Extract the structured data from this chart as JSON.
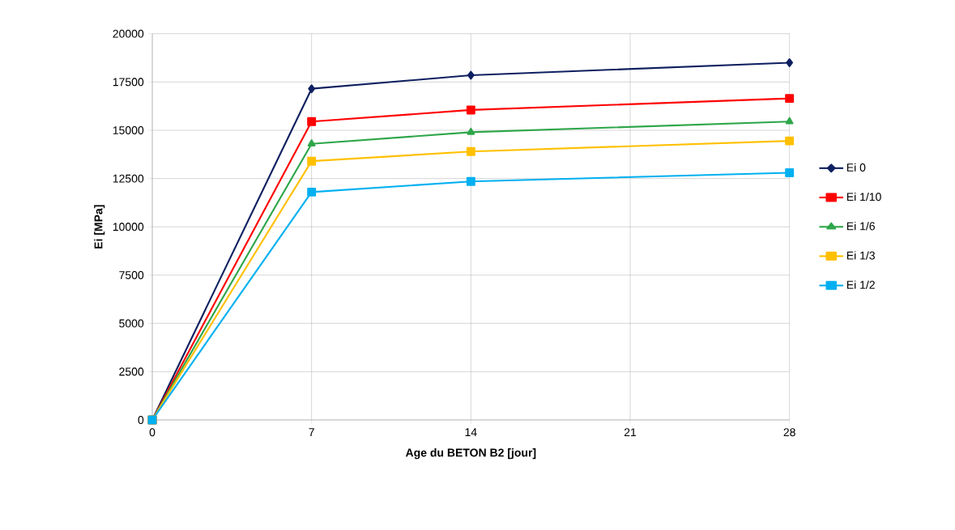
{
  "chart_data": {
    "type": "line",
    "xlabel": "Age du BETON B2 [jour]",
    "ylabel": "Ei [MPa]",
    "x": [
      0,
      7,
      14,
      28
    ],
    "xlim": [
      0,
      28
    ],
    "xticks": [
      0,
      7,
      14,
      21,
      28
    ],
    "ylim": [
      0,
      20000
    ],
    "yticks": [
      0,
      2500,
      5000,
      7500,
      10000,
      12500,
      15000,
      17500,
      20000
    ],
    "grid": true,
    "legend": "right",
    "line_style": "solid",
    "series": [
      {
        "name": "Ei 0",
        "color": "#0f2060",
        "marker": "diamond",
        "values": [
          0,
          17150,
          17850,
          18500
        ]
      },
      {
        "name": "Ei 1/10",
        "color": "#ff0000",
        "marker": "square",
        "values": [
          0,
          15450,
          16050,
          16650
        ]
      },
      {
        "name": "Ei 1/6",
        "color": "#2ea64a",
        "marker": "triangle",
        "values": [
          0,
          14300,
          14900,
          15450
        ]
      },
      {
        "name": "Ei 1/3",
        "color": "#ffc000",
        "marker": "square",
        "values": [
          0,
          13400,
          13900,
          14450
        ]
      },
      {
        "name": "Ei 1/2",
        "color": "#00b0f0",
        "marker": "square",
        "values": [
          0,
          11800,
          12350,
          12800
        ]
      }
    ]
  }
}
